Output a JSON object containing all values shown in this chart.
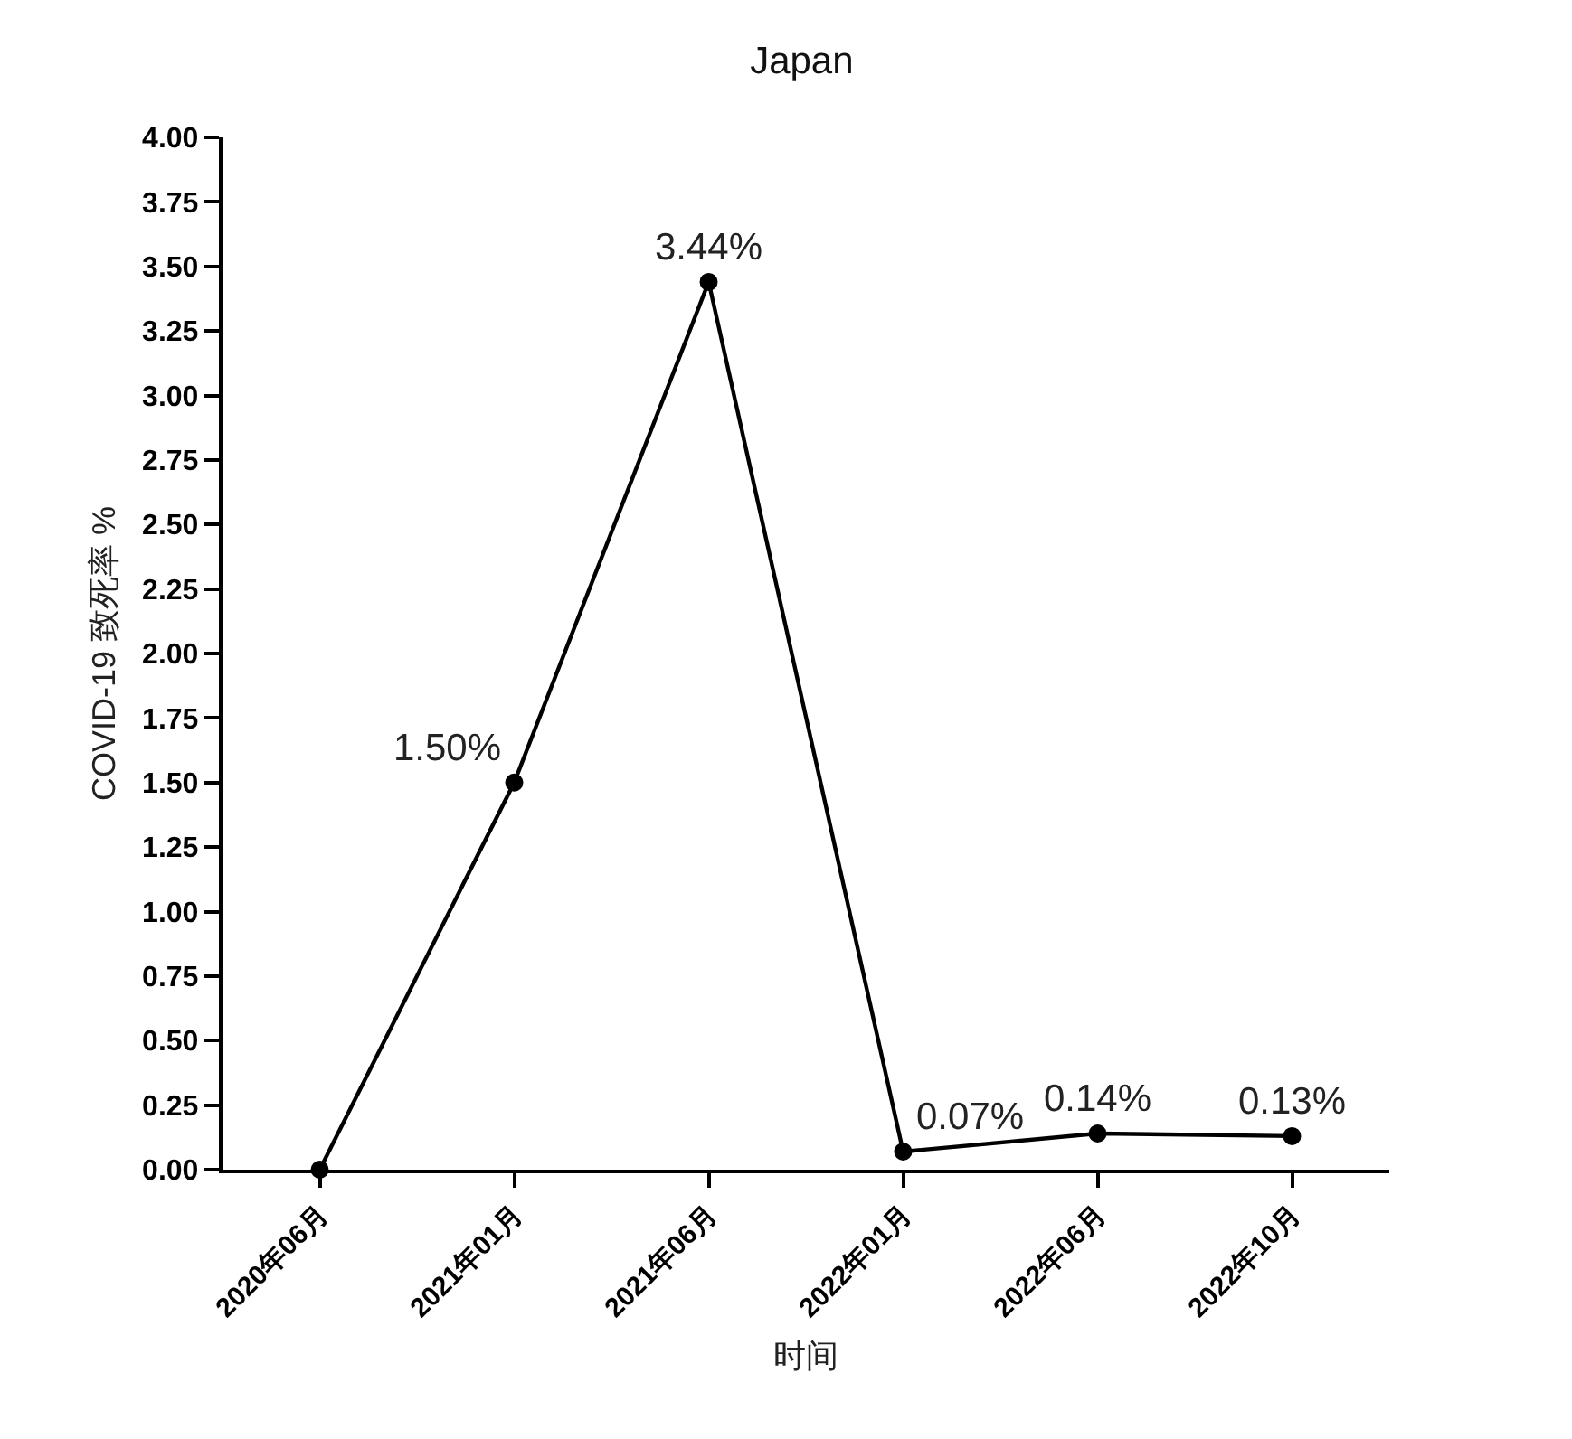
{
  "chart_data": {
    "type": "line",
    "title": "Japan",
    "xlabel": "时间",
    "ylabel": "COVID-19 致死率 %",
    "categories": [
      "2020年06月",
      "2021年01月",
      "2021年06月",
      "2022年01月",
      "2022年06月",
      "2022年10月"
    ],
    "values": [
      0,
      1.5,
      3.44,
      0.07,
      0.14,
      0.13
    ],
    "color": "#000000",
    "value_labels": [
      null,
      "1.50%",
      "3.44%",
      "0.07%",
      "0.14%",
      "0.13%"
    ],
    "ylim": [
      0,
      4
    ],
    "yticks": [
      {
        "value": 0,
        "label": "0.00"
      },
      {
        "value": 0.25,
        "label": "0.25"
      },
      {
        "value": 0.5,
        "label": "0.50"
      },
      {
        "value": 0.75,
        "label": "0.75"
      },
      {
        "value": 1,
        "label": "1.00"
      },
      {
        "value": 1.25,
        "label": "1.25"
      },
      {
        "value": 1.5,
        "label": "1.50"
      },
      {
        "value": 1.75,
        "label": "1.75"
      },
      {
        "value": 2,
        "label": "2.00"
      },
      {
        "value": 2.25,
        "label": "2.25"
      },
      {
        "value": 2.5,
        "label": "2.50"
      },
      {
        "value": 2.75,
        "label": "2.75"
      },
      {
        "value": 3,
        "label": "3.00"
      },
      {
        "value": 3.25,
        "label": "3.25"
      },
      {
        "value": 3.5,
        "label": "3.50"
      },
      {
        "value": 3.75,
        "label": "3.75"
      },
      {
        "value": 4,
        "label": "4.00"
      }
    ],
    "grid": false,
    "marker": "circle",
    "line_style": "solid"
  }
}
